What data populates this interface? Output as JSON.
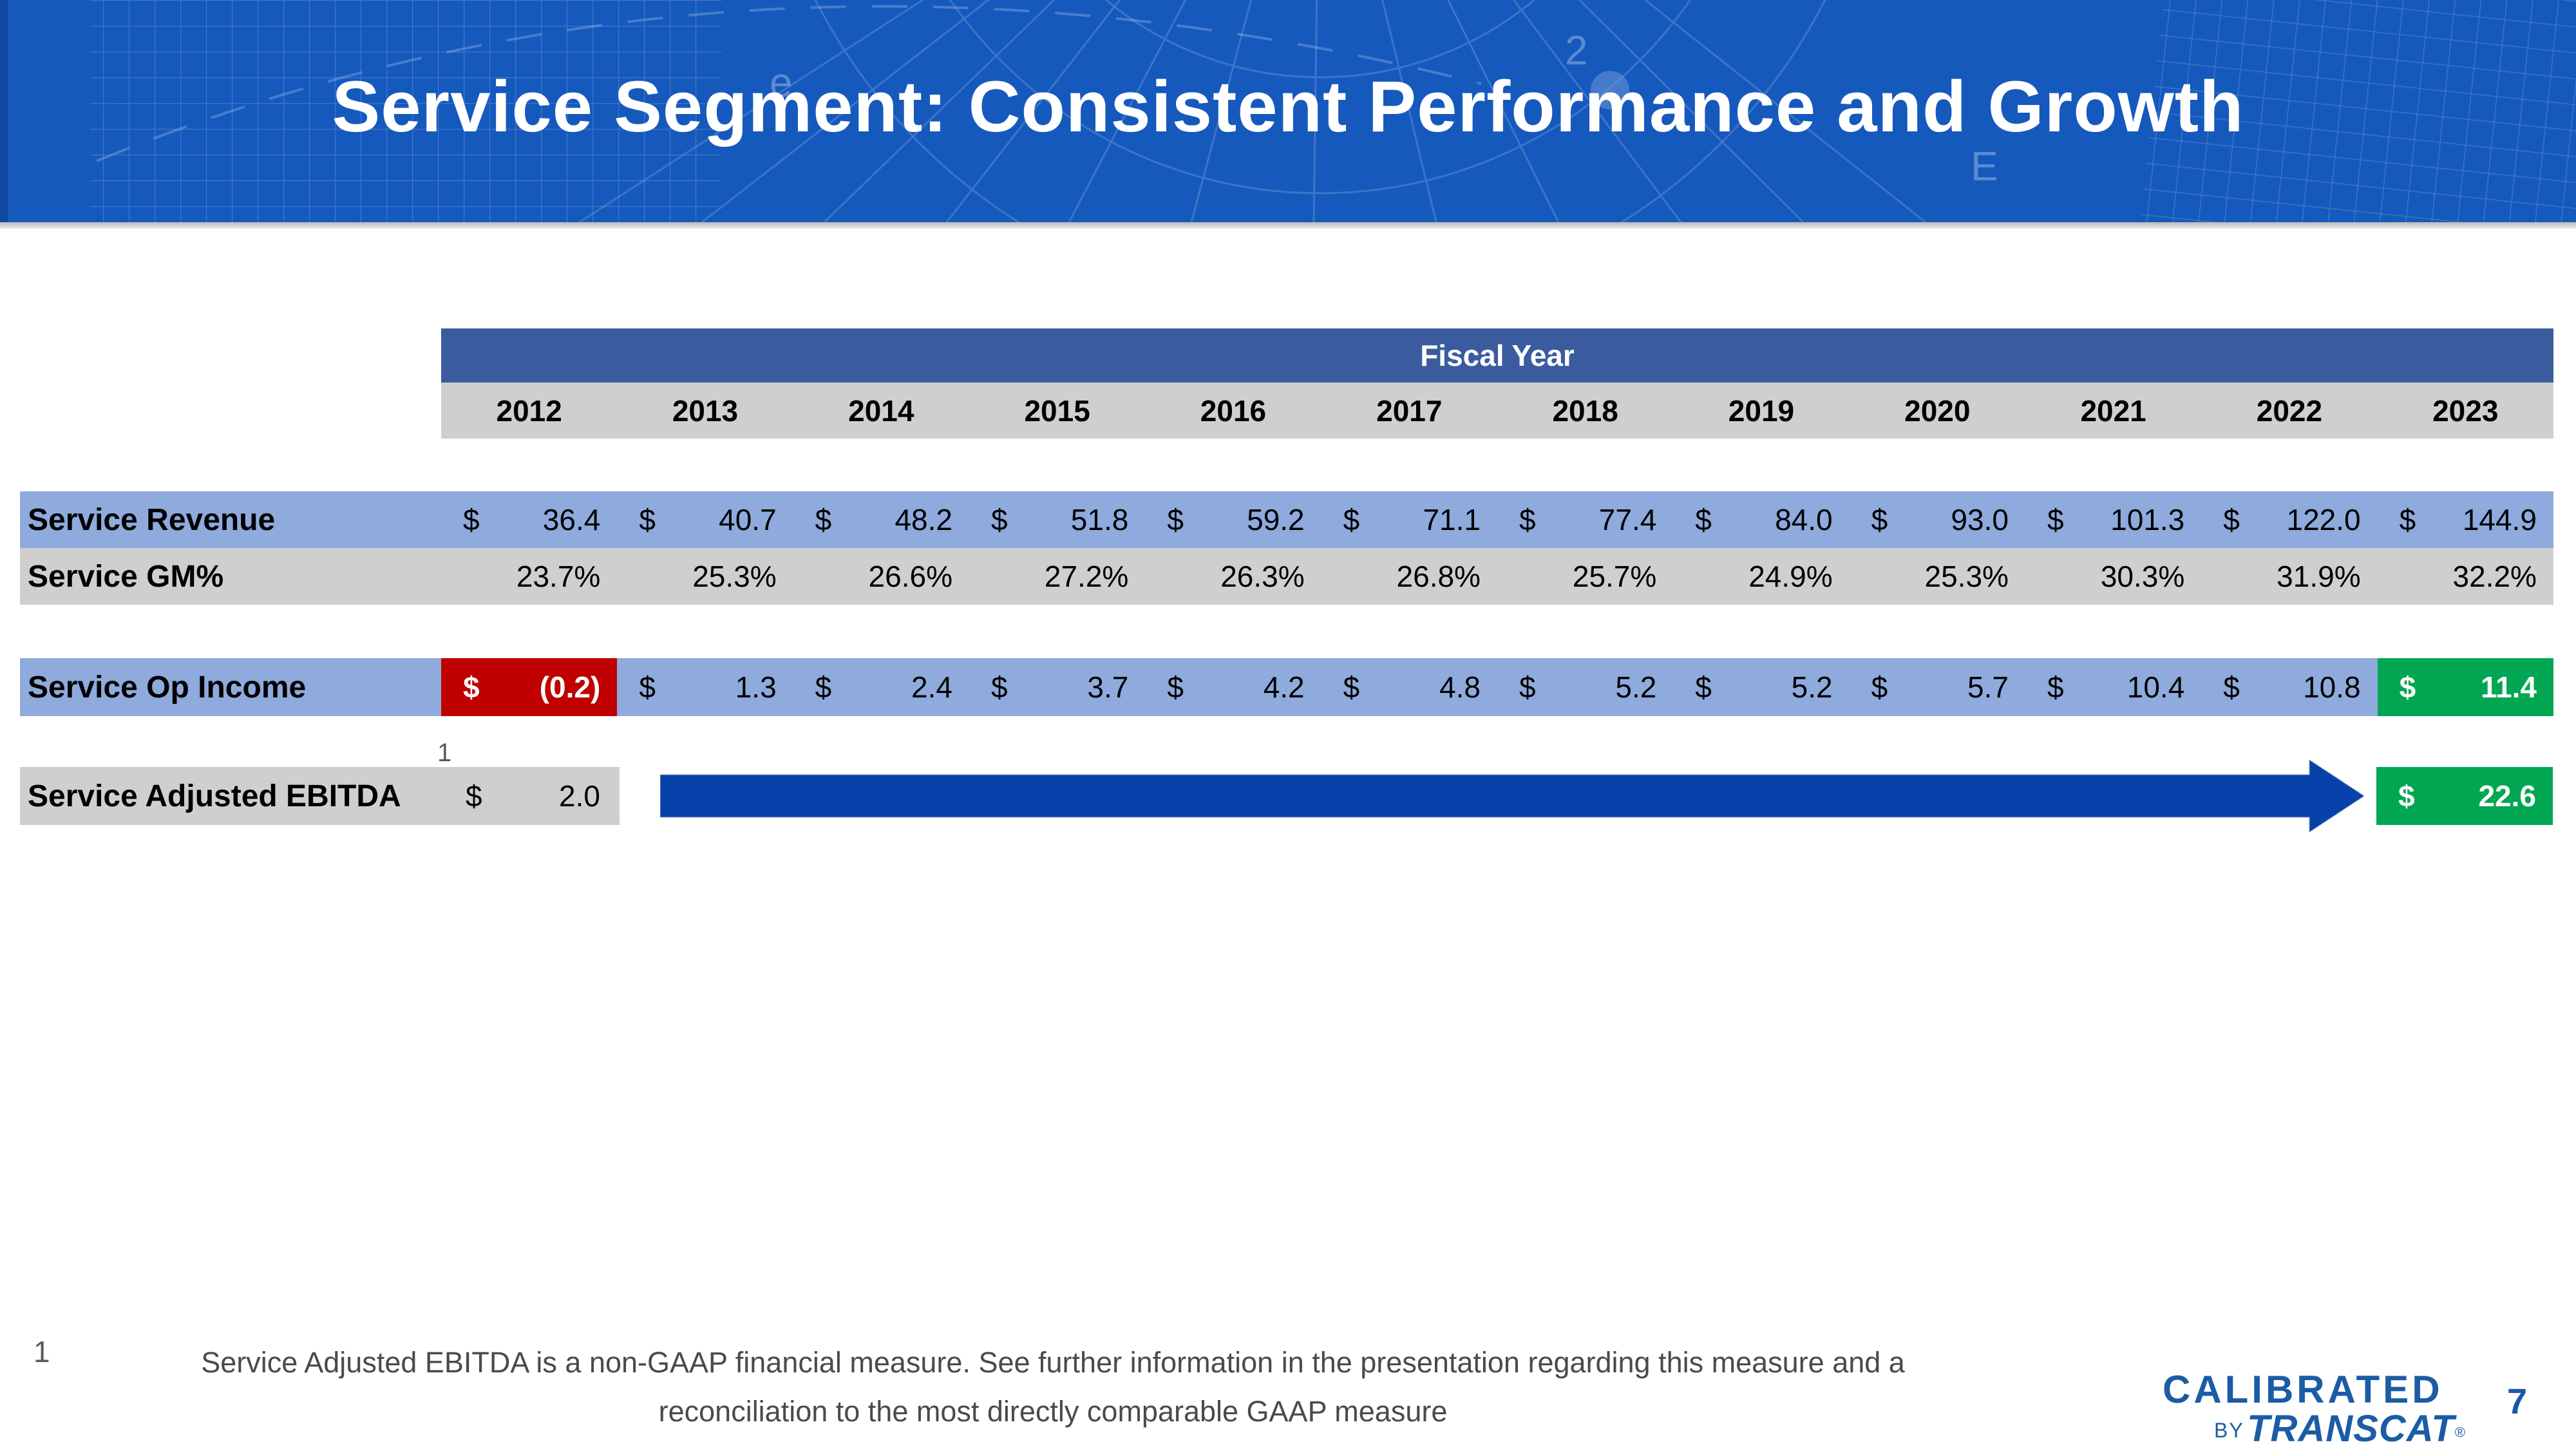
{
  "slide": {
    "title": "Service Segment: Consistent Performance and Growth",
    "page_number": "7"
  },
  "colors": {
    "header_blue": "#1659bd",
    "band_blue": "#3a5c9e",
    "row_blue": "#8faadc",
    "row_gray": "#d0cece",
    "negative_red": "#c00000",
    "positive_green": "#00a651",
    "arrow_blue": "#0742ab",
    "logo_blue": "#1b5ca4",
    "footnote_gray": "#4a4a4a"
  },
  "table": {
    "header_label": "Fiscal Year",
    "currency_symbol": "$",
    "years": [
      "2012",
      "2013",
      "2014",
      "2015",
      "2016",
      "2017",
      "2018",
      "2019",
      "2020",
      "2021",
      "2022",
      "2023"
    ],
    "rows": {
      "revenue": {
        "label": "Service Revenue",
        "values": [
          "36.4",
          "40.7",
          "48.2",
          "51.8",
          "59.2",
          "71.1",
          "77.4",
          "84.0",
          "93.0",
          "101.3",
          "122.0",
          "144.9"
        ]
      },
      "gm": {
        "label": "Service GM%",
        "values": [
          "23.7%",
          "25.3%",
          "26.6%",
          "27.2%",
          "26.3%",
          "26.8%",
          "25.7%",
          "24.9%",
          "25.3%",
          "30.3%",
          "31.9%",
          "32.2%"
        ]
      },
      "op_income": {
        "label": "Service Op Income",
        "values": [
          "(0.2)",
          "1.3",
          "2.4",
          "3.7",
          "4.2",
          "4.8",
          "5.2",
          "5.2",
          "5.7",
          "10.4",
          "10.8",
          "11.4"
        ],
        "negative_index": 0,
        "highlight_index": 11
      },
      "ebitda": {
        "label": "Service Adjusted EBITDA",
        "footnote_ref": "1",
        "value_2012": "2.0",
        "value_2023": "22.6"
      }
    }
  },
  "footnote": {
    "marker": "1",
    "line1": "Service Adjusted EBITDA is a non-GAAP financial measure.  See further information in the presentation regarding this measure and a",
    "line2": "reconciliation to the most directly comparable GAAP measure"
  },
  "logo": {
    "calibrated": "CALIBRATED",
    "by": "BY",
    "transcat": "TRANSCAT",
    "registered": "®"
  }
}
